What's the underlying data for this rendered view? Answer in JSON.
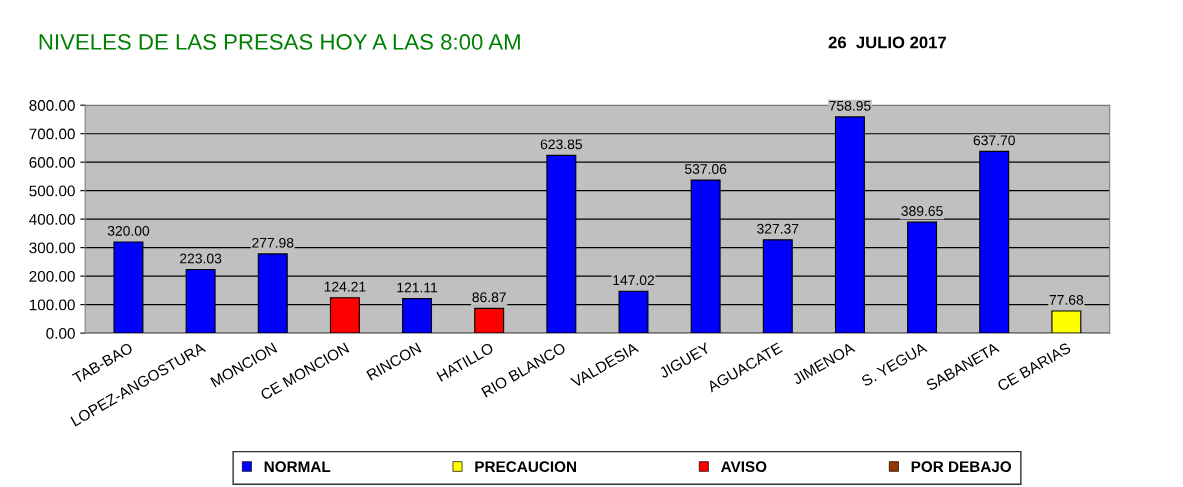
{
  "chart_data": {
    "type": "bar",
    "title": "NIVELES DE LAS PRESAS HOY A LAS 8:00 AM",
    "subtitle": "26  JULIO 2017",
    "categories": [
      "TAB-BAO",
      "LOPEZ-ANGOSTURA",
      "MONCION",
      "CE MONCION",
      "RINCON",
      "HATILLO",
      "RIO BLANCO",
      "VALDESIA",
      "JIGUEY",
      "AGUACATE",
      "JIMENOA",
      "S. YEGUA",
      "SABANETA",
      "CE BARIAS"
    ],
    "stacked": true,
    "series": [
      {
        "name": "NORMAL",
        "color": "#0000ff",
        "values": [
          320.0,
          223.03,
          277.98,
          null,
          121.11,
          null,
          623.85,
          147.02,
          537.06,
          327.37,
          758.95,
          389.65,
          637.7,
          null
        ],
        "value_labels": [
          "320.00",
          "223.03",
          "277.98",
          null,
          "121.11",
          null,
          "623.85",
          "147.02",
          "537.06",
          "327.37",
          "758.95",
          "389.65",
          "637.70",
          null
        ]
      },
      {
        "name": "PRECAUCION",
        "color": "#ffff00",
        "values": [
          null,
          null,
          null,
          null,
          null,
          null,
          null,
          null,
          null,
          null,
          null,
          null,
          null,
          77.68
        ],
        "value_labels": [
          null,
          null,
          null,
          null,
          null,
          null,
          null,
          null,
          null,
          null,
          null,
          null,
          null,
          "77.68"
        ]
      },
      {
        "name": "AVISO",
        "color": "#ff0000",
        "values": [
          null,
          null,
          null,
          124.21,
          null,
          86.87,
          null,
          null,
          null,
          null,
          null,
          null,
          null,
          null
        ],
        "value_labels": [
          null,
          null,
          null,
          "124.21",
          null,
          "86.87",
          null,
          null,
          null,
          null,
          null,
          null,
          null,
          null
        ]
      },
      {
        "name": "POR DEBAJO",
        "color": "#993300",
        "values": [
          null,
          null,
          null,
          null,
          null,
          null,
          null,
          null,
          null,
          null,
          null,
          null,
          null,
          null
        ]
      }
    ],
    "ylim": [
      0,
      800
    ],
    "yticks": [
      {
        "value": 0,
        "label": "0.00"
      },
      {
        "value": 100,
        "label": "100.00"
      },
      {
        "value": 200,
        "label": "200.00"
      },
      {
        "value": 300,
        "label": "300.00"
      },
      {
        "value": 400,
        "label": "400.00"
      },
      {
        "value": 500,
        "label": "500.00"
      },
      {
        "value": 600,
        "label": "600.00"
      },
      {
        "value": 700,
        "label": "700.00"
      },
      {
        "value": 800,
        "label": "800.00"
      }
    ],
    "grid": "y",
    "legend": "bottom"
  }
}
